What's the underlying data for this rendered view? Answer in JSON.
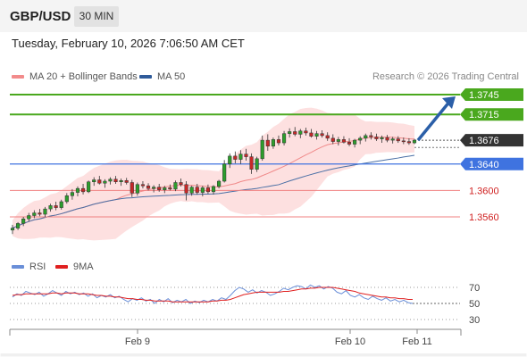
{
  "header": {
    "pair": "GBP/USD",
    "timeframe": "30 MIN",
    "datetime": "Tuesday, February 10, 2026 7:06:50 AM CET",
    "credit": "Research © 2026 Trading Central"
  },
  "colors": {
    "green": "#4aa81e",
    "blue": "#3f73e0",
    "red": "#f08080",
    "dark": "#333333",
    "band": "#fcd5d5",
    "ma50": "#4a6fa5",
    "arrow": "#2b5fa8",
    "rsi": "#6a8fd8",
    "rsi_ma": "#e02020"
  },
  "chart_data": [
    {
      "type": "candlestick",
      "legend": [
        {
          "label": "MA 20 + Bollinger Bands",
          "color": "#f28b8b"
        },
        {
          "label": "MA 50",
          "color": "#2f5b9a"
        }
      ],
      "ylim": [
        1.3515,
        1.375
      ],
      "levels": [
        {
          "value": 1.3745,
          "label": "1.3745",
          "kind": "resistance"
        },
        {
          "value": 1.3715,
          "label": "1.3715",
          "kind": "resistance"
        },
        {
          "value": 1.3676,
          "label": "1.3676",
          "kind": "last"
        },
        {
          "value": 1.364,
          "label": "1.3640",
          "kind": "support-strong"
        },
        {
          "value": 1.36,
          "label": "1.3600",
          "kind": "support"
        },
        {
          "value": 1.356,
          "label": "1.3560",
          "kind": "support"
        }
      ],
      "arrow": {
        "from_x": 75,
        "from_y": 1.3676,
        "to_x": 82,
        "to_y": 1.3742
      },
      "x_ticks": [
        {
          "x": 20,
          "label": "Feb 9"
        },
        {
          "x": 58,
          "label": "Feb 10"
        },
        {
          "x": 68,
          "label": "Feb 11"
        }
      ],
      "candles": [
        [
          1.354,
          1.3548,
          1.3534,
          1.3543
        ],
        [
          1.3543,
          1.3552,
          1.354,
          1.355
        ],
        [
          1.355,
          1.356,
          1.3546,
          1.3557
        ],
        [
          1.3557,
          1.3566,
          1.3553,
          1.3562
        ],
        [
          1.3562,
          1.357,
          1.3558,
          1.3566
        ],
        [
          1.3566,
          1.3572,
          1.3561,
          1.3564
        ],
        [
          1.3564,
          1.3575,
          1.356,
          1.3572
        ],
        [
          1.3572,
          1.358,
          1.3568,
          1.3577
        ],
        [
          1.3577,
          1.3583,
          1.357,
          1.3574
        ],
        [
          1.3574,
          1.3586,
          1.3571,
          1.3583
        ],
        [
          1.3583,
          1.3596,
          1.358,
          1.3592
        ],
        [
          1.3592,
          1.3602,
          1.3586,
          1.3597
        ],
        [
          1.3597,
          1.3606,
          1.3591,
          1.3603
        ],
        [
          1.3603,
          1.361,
          1.3594,
          1.3598
        ],
        [
          1.3598,
          1.3615,
          1.3596,
          1.3613
        ],
        [
          1.3613,
          1.362,
          1.3607,
          1.3616
        ],
        [
          1.3616,
          1.3622,
          1.3609,
          1.3611
        ],
        [
          1.3611,
          1.3617,
          1.3604,
          1.3614
        ],
        [
          1.3614,
          1.362,
          1.3609,
          1.3617
        ],
        [
          1.3617,
          1.3622,
          1.361,
          1.3613
        ],
        [
          1.3613,
          1.3618,
          1.3607,
          1.3615
        ],
        [
          1.3615,
          1.3619,
          1.3609,
          1.3612
        ],
        [
          1.3612,
          1.3616,
          1.359,
          1.3596
        ],
        [
          1.3596,
          1.3612,
          1.3592,
          1.3609
        ],
        [
          1.3609,
          1.3614,
          1.3603,
          1.3607
        ],
        [
          1.3607,
          1.3611,
          1.36,
          1.3603
        ],
        [
          1.3603,
          1.3608,
          1.3597,
          1.3605
        ],
        [
          1.3605,
          1.361,
          1.3598,
          1.3601
        ],
        [
          1.3601,
          1.3607,
          1.3596,
          1.3604
        ],
        [
          1.3604,
          1.3609,
          1.36,
          1.3602
        ],
        [
          1.3602,
          1.3615,
          1.3599,
          1.3612
        ],
        [
          1.3612,
          1.3618,
          1.3606,
          1.3609
        ],
        [
          1.3609,
          1.3614,
          1.3585,
          1.3596
        ],
        [
          1.3596,
          1.3607,
          1.3592,
          1.3605
        ],
        [
          1.3605,
          1.361,
          1.3594,
          1.3597
        ],
        [
          1.3597,
          1.3607,
          1.3591,
          1.3604
        ],
        [
          1.3604,
          1.3609,
          1.3595,
          1.3598
        ],
        [
          1.3598,
          1.3608,
          1.3594,
          1.3606
        ],
        [
          1.3606,
          1.3616,
          1.3603,
          1.3614
        ],
        [
          1.3614,
          1.3646,
          1.3612,
          1.364
        ],
        [
          1.364,
          1.3656,
          1.3634,
          1.3652
        ],
        [
          1.3652,
          1.3659,
          1.3641,
          1.3647
        ],
        [
          1.3647,
          1.3661,
          1.364,
          1.3655
        ],
        [
          1.3655,
          1.3663,
          1.3645,
          1.3651
        ],
        [
          1.3651,
          1.3656,
          1.3625,
          1.3632
        ],
        [
          1.3632,
          1.3651,
          1.3628,
          1.3648
        ],
        [
          1.3648,
          1.3683,
          1.3645,
          1.3676
        ],
        [
          1.3676,
          1.3685,
          1.366,
          1.3667
        ],
        [
          1.3667,
          1.368,
          1.3663,
          1.3677
        ],
        [
          1.3677,
          1.3683,
          1.3668,
          1.3672
        ],
        [
          1.3672,
          1.369,
          1.3668,
          1.3686
        ],
        [
          1.3686,
          1.3694,
          1.368,
          1.3689
        ],
        [
          1.3689,
          1.3696,
          1.3682,
          1.3685
        ],
        [
          1.3685,
          1.3693,
          1.3679,
          1.369
        ],
        [
          1.369,
          1.3695,
          1.3683,
          1.3687
        ],
        [
          1.3687,
          1.3693,
          1.368,
          1.3682
        ],
        [
          1.3682,
          1.369,
          1.3677,
          1.3686
        ],
        [
          1.3686,
          1.3691,
          1.368,
          1.3683
        ],
        [
          1.3683,
          1.3688,
          1.3675,
          1.3679
        ],
        [
          1.3679,
          1.3685,
          1.367,
          1.3674
        ],
        [
          1.3674,
          1.3681,
          1.3668,
          1.3677
        ],
        [
          1.3677,
          1.3682,
          1.3671,
          1.3673
        ],
        [
          1.3673,
          1.3679,
          1.3667,
          1.367
        ],
        [
          1.367,
          1.3678,
          1.3665,
          1.3676
        ],
        [
          1.3676,
          1.3682,
          1.367,
          1.3679
        ],
        [
          1.3679,
          1.3686,
          1.3674,
          1.3683
        ],
        [
          1.3683,
          1.3688,
          1.3677,
          1.3681
        ],
        [
          1.3681,
          1.3686,
          1.3675,
          1.3678
        ],
        [
          1.3678,
          1.3683,
          1.3672,
          1.368
        ],
        [
          1.368,
          1.3684,
          1.3673,
          1.3676
        ],
        [
          1.3676,
          1.3681,
          1.3671,
          1.3678
        ],
        [
          1.3678,
          1.3682,
          1.3672,
          1.3675
        ],
        [
          1.3675,
          1.368,
          1.367,
          1.3674
        ],
        [
          1.3674,
          1.3679,
          1.3669,
          1.3672
        ],
        [
          1.3672,
          1.3678,
          1.367,
          1.3676
        ]
      ]
    },
    {
      "type": "line",
      "legend": [
        {
          "label": "RSI",
          "color": "#6a8fd8"
        },
        {
          "label": "9MA",
          "color": "#e02020"
        }
      ],
      "ylim": [
        22,
        80
      ],
      "y_ticks": [
        {
          "value": 70,
          "label": "70"
        },
        {
          "value": 50,
          "label": "50"
        },
        {
          "value": 30,
          "label": "30"
        }
      ],
      "series": [
        {
          "name": "RSI",
          "values": [
            58,
            62,
            60,
            65,
            63,
            61,
            64,
            59,
            62,
            66,
            63,
            60,
            65,
            62,
            64,
            61,
            63,
            59,
            62,
            57,
            60,
            58,
            61,
            57,
            59,
            55,
            52,
            56,
            54,
            57,
            53,
            55,
            50,
            55,
            52,
            56,
            51,
            54,
            52,
            55,
            50,
            53,
            51,
            54,
            52,
            55,
            53,
            57,
            55,
            60,
            66,
            70,
            68,
            64,
            67,
            63,
            66,
            64,
            60,
            62,
            65,
            69,
            67,
            70,
            72,
            71,
            68,
            73,
            70,
            72,
            68,
            71,
            69,
            64,
            62,
            66,
            60,
            58,
            61,
            57,
            55,
            59,
            56,
            54,
            57,
            53,
            55,
            52,
            54,
            51,
            50
          ]
        },
        {
          "name": "9MA",
          "values": [
            60,
            61,
            61,
            62,
            62,
            62,
            62,
            62,
            62,
            63,
            63,
            62,
            63,
            63,
            63,
            62,
            62,
            62,
            61,
            60,
            60,
            59,
            59,
            58,
            58,
            57,
            56,
            56,
            55,
            55,
            54,
            54,
            53,
            53,
            53,
            53,
            52,
            52,
            52,
            52,
            52,
            52,
            52,
            52,
            52,
            53,
            53,
            54,
            54,
            55,
            57,
            59,
            61,
            62,
            63,
            64,
            64,
            64,
            64,
            64,
            64,
            65,
            65,
            66,
            67,
            68,
            68,
            69,
            69,
            70,
            70,
            70,
            70,
            69,
            68,
            67,
            66,
            65,
            63,
            62,
            61,
            60,
            59,
            58,
            58,
            57,
            57,
            56,
            56,
            55,
            55
          ]
        }
      ]
    }
  ]
}
